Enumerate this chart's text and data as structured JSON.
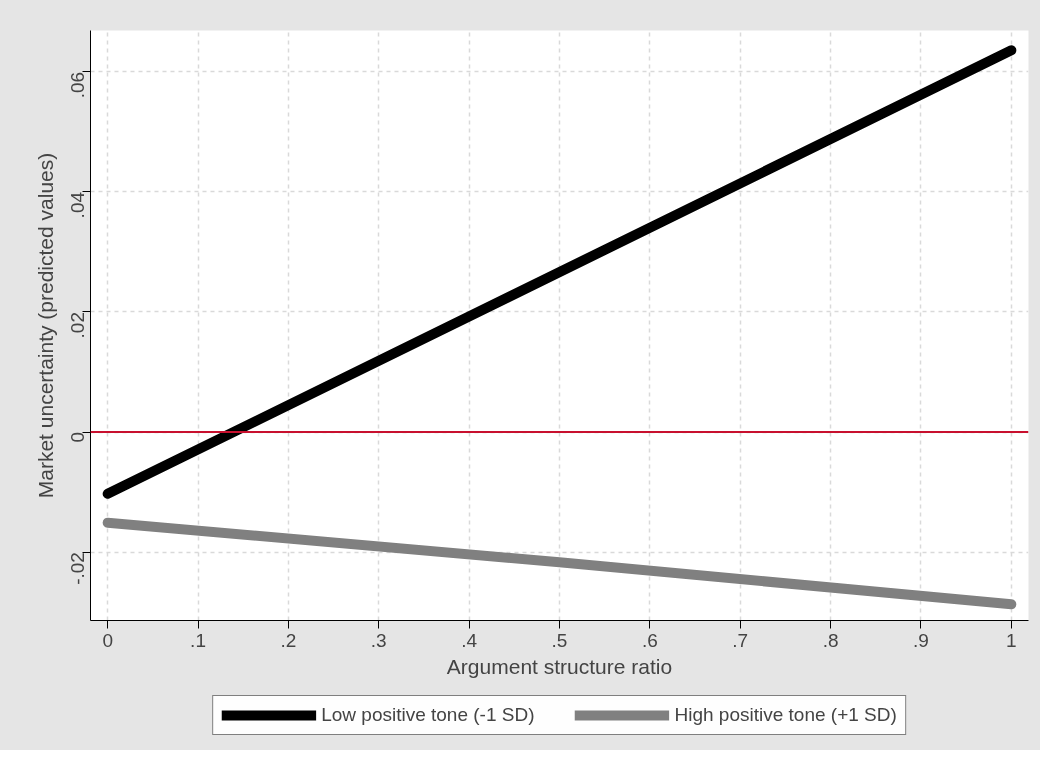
{
  "chart_data": {
    "type": "line",
    "xlabel": "Argument structure ratio",
    "ylabel": "Market uncertainty (predicted values)",
    "xlim": [
      -0.019,
      1.019
    ],
    "ylim": [
      -0.0314,
      0.0669
    ],
    "xticks": [
      {
        "value": 0,
        "label": "0"
      },
      {
        "value": 0.1,
        "label": ".1"
      },
      {
        "value": 0.2,
        "label": ".2"
      },
      {
        "value": 0.3,
        "label": ".3"
      },
      {
        "value": 0.4,
        "label": ".4"
      },
      {
        "value": 0.5,
        "label": ".5"
      },
      {
        "value": 0.6,
        "label": ".6"
      },
      {
        "value": 0.7,
        "label": ".7"
      },
      {
        "value": 0.8,
        "label": ".8"
      },
      {
        "value": 0.9,
        "label": ".9"
      },
      {
        "value": 1,
        "label": "1"
      }
    ],
    "yticks": [
      {
        "value": -0.02,
        "label": "-.02"
      },
      {
        "value": 0,
        "label": "0"
      },
      {
        "value": 0.02,
        "label": ".02"
      },
      {
        "value": 0.04,
        "label": ".04"
      },
      {
        "value": 0.06,
        "label": ".06"
      }
    ],
    "series": [
      {
        "name": "Low positive tone (-1 SD)",
        "color": "#000000",
        "x": [
          0,
          1
        ],
        "values": [
          -0.0103,
          0.0636
        ]
      },
      {
        "name": "High positive tone (+1 SD)",
        "color": "#808080",
        "x": [
          0,
          0.5,
          1
        ],
        "values": [
          -0.0151,
          -0.0217,
          -0.0287
        ]
      }
    ],
    "ref_lines": [
      {
        "axis": "y",
        "value": 0,
        "color": "#c8102e"
      }
    ],
    "grid": true,
    "legend": "bottom",
    "line_style": "solid",
    "marker": "none"
  }
}
